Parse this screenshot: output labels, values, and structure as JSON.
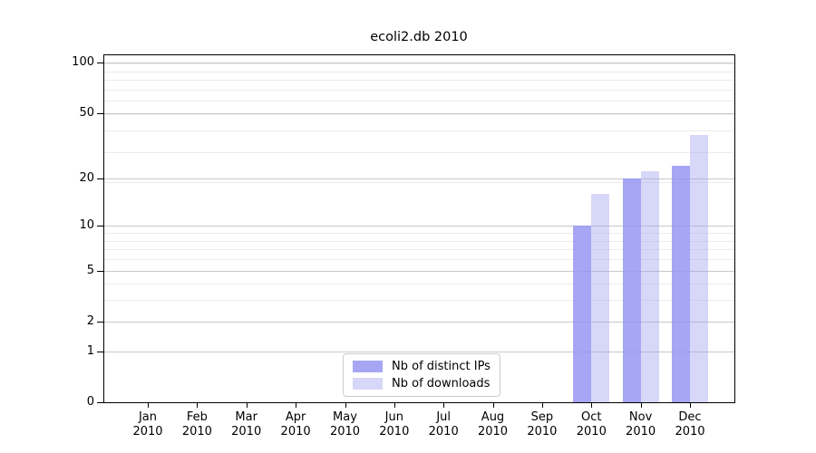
{
  "chart_data": {
    "type": "bar",
    "title": "ecoli2.db 2010",
    "categories": [
      "Jan",
      "Feb",
      "Mar",
      "Apr",
      "May",
      "Jun",
      "Jul",
      "Aug",
      "Sep",
      "Oct",
      "Nov",
      "Dec"
    ],
    "year_label": "2010",
    "series": [
      {
        "name": "Nb of distinct IPs",
        "color": "rgba(150,150,242,0.85)",
        "values": [
          0,
          0,
          0,
          0,
          0,
          0,
          0,
          0,
          0,
          10,
          20,
          24
        ]
      },
      {
        "name": "Nb of downloads",
        "color": "rgba(160,160,240,0.42)",
        "values": [
          0,
          0,
          0,
          0,
          0,
          0,
          0,
          0,
          0,
          16,
          22,
          37
        ]
      }
    ],
    "y_axis": {
      "scale": "log1p",
      "tick_labels": [
        "0",
        "1",
        "2",
        "5",
        "10",
        "20",
        "50",
        "100"
      ],
      "ticks": [
        0,
        1,
        2,
        5,
        10,
        20,
        50,
        100
      ],
      "major_gridline_values": [
        1,
        2,
        5,
        10,
        20,
        50,
        100
      ],
      "minor_gridline_values": [
        1,
        2,
        3,
        4,
        5,
        6,
        7,
        8,
        9,
        19,
        29,
        39,
        49,
        59,
        69,
        79,
        89,
        99
      ],
      "max": 112
    },
    "legend_position": "lower center",
    "grid": true,
    "colors": {
      "axis": "#000000",
      "major_grid": "#c8c8c8",
      "minor_grid": "#ececec",
      "background": "#ffffff",
      "text": "#000000"
    }
  }
}
